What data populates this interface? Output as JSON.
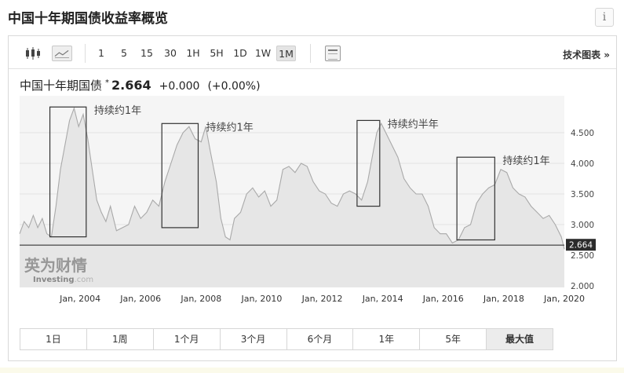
{
  "page": {
    "title": "中国十年期国债收益率概览",
    "info_glyph": "i"
  },
  "toolbar": {
    "candle_icon": "candlestick-icon",
    "line_icon": "line-chart-icon",
    "periods": [
      "1",
      "5",
      "15",
      "30",
      "1H",
      "5H",
      "1D",
      "1W",
      "1M"
    ],
    "active_period": "1M",
    "calendar_icon": "calendar-icon",
    "tech_chart_label": "技术图表 »"
  },
  "quote": {
    "name": "中国十年期国债",
    "star": "*",
    "price": "2.664",
    "change": "+0.000",
    "change_pct": "(+0.00%)"
  },
  "watermark": {
    "cn": "英为财情",
    "en_bold": "Investing",
    "en_light": ".com"
  },
  "chart_data": {
    "type": "area",
    "x_ticks": [
      "Jan, 2004",
      "Jan, 2006",
      "Jan, 2008",
      "Jan, 2010",
      "Jan, 2012",
      "Jan, 2014",
      "Jan, 2016",
      "Jan, 2018",
      "Jan, 2020"
    ],
    "y_ticks": [
      "2.000",
      "2.500",
      "3.000",
      "3.500",
      "4.000",
      "4.500"
    ],
    "ylim": [
      2.0,
      5.0
    ],
    "xlim": [
      2002.0,
      2020.0
    ],
    "current_value": 2.664,
    "current_label": "2.664",
    "x": [
      2002.0,
      2002.15,
      2002.3,
      2002.45,
      2002.6,
      2002.75,
      2002.9,
      2003.05,
      2003.2,
      2003.35,
      2003.5,
      2003.65,
      2003.8,
      2003.95,
      2004.1,
      2004.25,
      2004.4,
      2004.55,
      2004.7,
      2004.85,
      2005.0,
      2005.2,
      2005.4,
      2005.6,
      2005.8,
      2006.0,
      2006.2,
      2006.4,
      2006.6,
      2006.8,
      2007.0,
      2007.2,
      2007.4,
      2007.6,
      2007.8,
      2008.0,
      2008.15,
      2008.3,
      2008.5,
      2008.65,
      2008.8,
      2008.95,
      2009.1,
      2009.3,
      2009.5,
      2009.7,
      2009.9,
      2010.1,
      2010.3,
      2010.5,
      2010.7,
      2010.9,
      2011.1,
      2011.3,
      2011.5,
      2011.7,
      2011.9,
      2012.1,
      2012.3,
      2012.5,
      2012.7,
      2012.9,
      2013.1,
      2013.3,
      2013.5,
      2013.65,
      2013.8,
      2013.95,
      2014.1,
      2014.3,
      2014.5,
      2014.7,
      2014.9,
      2015.1,
      2015.3,
      2015.5,
      2015.7,
      2015.9,
      2016.1,
      2016.3,
      2016.5,
      2016.7,
      2016.9,
      2017.1,
      2017.3,
      2017.5,
      2017.7,
      2017.9,
      2018.1,
      2018.3,
      2018.5,
      2018.7,
      2018.9,
      2019.1,
      2019.3,
      2019.5,
      2019.7,
      2019.9,
      2020.0
    ],
    "values": [
      2.85,
      3.05,
      2.95,
      3.15,
      2.95,
      3.1,
      2.85,
      2.8,
      3.3,
      3.9,
      4.3,
      4.7,
      4.9,
      4.6,
      4.8,
      4.4,
      3.9,
      3.4,
      3.2,
      3.05,
      3.3,
      2.9,
      2.95,
      3.0,
      3.3,
      3.1,
      3.2,
      3.4,
      3.3,
      3.7,
      4.0,
      4.3,
      4.5,
      4.6,
      4.4,
      4.35,
      4.6,
      4.2,
      3.7,
      3.1,
      2.8,
      2.75,
      3.1,
      3.2,
      3.5,
      3.6,
      3.45,
      3.55,
      3.3,
      3.4,
      3.9,
      3.95,
      3.85,
      4.0,
      3.95,
      3.7,
      3.55,
      3.5,
      3.35,
      3.3,
      3.5,
      3.55,
      3.5,
      3.4,
      3.7,
      4.1,
      4.5,
      4.65,
      4.5,
      4.3,
      4.1,
      3.75,
      3.6,
      3.5,
      3.5,
      3.3,
      2.95,
      2.85,
      2.85,
      2.7,
      2.75,
      2.95,
      3.0,
      3.35,
      3.5,
      3.6,
      3.65,
      3.9,
      3.85,
      3.6,
      3.5,
      3.45,
      3.3,
      3.2,
      3.1,
      3.15,
      3.0,
      2.8,
      2.6
    ],
    "annotations": [
      {
        "label": "持续约1年",
        "x0": 2003.0,
        "x1": 2004.2,
        "y0": 2.8,
        "y1": 4.92
      },
      {
        "label": "持续约1年",
        "x0": 2006.7,
        "x1": 2007.9,
        "y0": 2.95,
        "y1": 4.65
      },
      {
        "label": "持续约半年",
        "x0": 2013.15,
        "x1": 2013.9,
        "y0": 3.3,
        "y1": 4.7
      },
      {
        "label": "持续约1年",
        "x0": 2016.45,
        "x1": 2017.7,
        "y0": 2.75,
        "y1": 4.1
      }
    ]
  },
  "range_buttons": [
    "1日",
    "1周",
    "1个月",
    "3个月",
    "6个月",
    "1年",
    "5年",
    "最大值"
  ],
  "active_range": "最大值"
}
